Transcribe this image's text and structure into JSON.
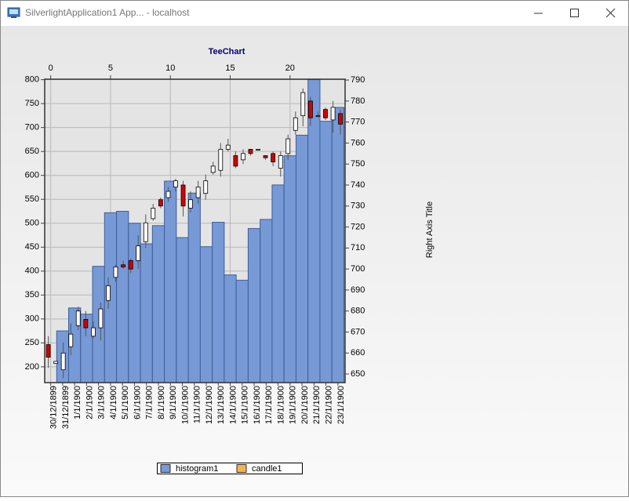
{
  "window": {
    "title": "SilverlightApplication1 App... - localhost"
  },
  "chart_data": {
    "type": "combo",
    "title": "TeeChart",
    "y2label": "Right Axis Title",
    "categories": [
      "30/12/1899",
      "31/12/1899",
      "1/1/1900",
      "2/1/1900",
      "3/1/1900",
      "4/1/1900",
      "5/1/1900",
      "6/1/1900",
      "7/1/1900",
      "8/1/1900",
      "9/1/1900",
      "10/1/1900",
      "11/1/1900",
      "12/1/1900",
      "13/1/1900",
      "14/1/1900",
      "15/1/1900",
      "16/1/1900",
      "17/1/1900",
      "18/1/1900",
      "19/1/1900",
      "20/1/1900",
      "21/1/1900",
      "22/1/1900",
      "23/1/1900"
    ],
    "xlim": [
      -0.5,
      24.6
    ],
    "xticks": [
      0,
      5,
      10,
      15,
      20
    ],
    "ylim": [
      167,
      801
    ],
    "yticks": [
      200,
      250,
      300,
      350,
      400,
      450,
      500,
      550,
      600,
      650,
      700,
      750,
      800
    ],
    "y2lim": [
      645.9,
      790.4
    ],
    "y2ticks": [
      650,
      660,
      670,
      680,
      690,
      700,
      710,
      720,
      730,
      740,
      750,
      760,
      770,
      780,
      790
    ],
    "grid": true,
    "legend": "bottom",
    "series": [
      {
        "name": "histogram1",
        "type": "bar",
        "color": "#7799d6",
        "values": [
          165,
          275,
          323,
          310,
          410,
          522,
          525,
          500,
          457,
          495,
          588,
          470,
          563,
          451,
          502,
          392,
          381,
          489,
          508,
          580,
          641,
          684,
          800,
          713,
          742
        ]
      },
      {
        "name": "candle1",
        "type": "candlestick",
        "axis": "y2",
        "color": "#f4b350",
        "up_color": "#ffffff",
        "down_color": "#d40000",
        "x": [
          -0.2,
          0.43,
          1.05,
          1.68,
          2.3,
          2.93,
          3.56,
          4.18,
          4.81,
          5.43,
          6.06,
          6.69,
          7.31,
          7.94,
          8.56,
          9.19,
          9.82,
          10.44,
          11.07,
          11.69,
          12.32,
          12.95,
          13.57,
          14.2,
          14.82,
          15.45,
          16.08,
          16.7,
          17.33,
          17.95,
          18.58,
          19.21,
          19.83,
          20.46,
          21.08,
          21.71,
          22.34,
          22.96,
          23.59,
          24.21
        ],
        "open": [
          664,
          655,
          652,
          663,
          673,
          676,
          668,
          672,
          685,
          696,
          702,
          704,
          704,
          713,
          724,
          733,
          734,
          739,
          740,
          729,
          734,
          736,
          746,
          747,
          757,
          754,
          752,
          757,
          757,
          754,
          755,
          748,
          755,
          766,
          773,
          780,
          773,
          776,
          771,
          774
        ],
        "high": [
          668,
          656,
          665,
          674,
          682,
          680,
          675,
          684,
          696,
          702,
          704,
          705,
          716,
          726,
          731,
          734,
          739,
          743,
          742,
          737,
          742,
          745,
          751,
          760,
          762,
          756,
          757,
          757,
          757,
          754,
          756,
          756,
          764,
          775,
          786,
          782,
          775,
          777,
          780,
          776
        ],
        "low": [
          653,
          655,
          648,
          659,
          671,
          668,
          667,
          666,
          681,
          694,
          700,
          698,
          700,
          710,
          723,
          729,
          732,
          737,
          725,
          727,
          731,
          733,
          745,
          744,
          756,
          748,
          750,
          754,
          757,
          752,
          749,
          744,
          752,
          764,
          768,
          768,
          772,
          771,
          765,
          764
        ],
        "close": [
          658,
          656,
          660,
          669,
          680,
          672,
          672,
          681,
          692,
          701,
          701,
          700,
          711,
          722,
          729,
          730,
          737,
          742,
          730,
          733,
          739,
          742,
          749,
          757,
          759,
          749,
          755,
          755,
          757,
          753,
          751,
          754,
          762,
          772,
          784,
          772,
          773,
          772,
          777,
          769
        ]
      }
    ]
  }
}
